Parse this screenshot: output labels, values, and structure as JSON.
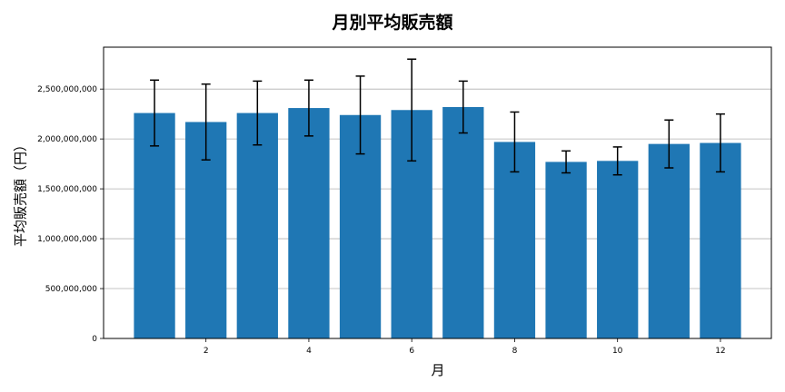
{
  "chart_data": {
    "type": "bar",
    "title": "月別平均販売額",
    "xlabel": "月",
    "ylabel": "平均販売額（円）",
    "categories": [
      1,
      2,
      3,
      4,
      5,
      6,
      7,
      8,
      9,
      10,
      11,
      12
    ],
    "values": [
      2260000000,
      2170000000,
      2260000000,
      2310000000,
      2240000000,
      2290000000,
      2320000000,
      1970000000,
      1770000000,
      1780000000,
      1950000000,
      1960000000
    ],
    "error": [
      330000000,
      380000000,
      320000000,
      280000000,
      390000000,
      510000000,
      260000000,
      300000000,
      110000000,
      140000000,
      240000000,
      290000000
    ],
    "bar_color": "#1f77b4",
    "error_color": "#000000",
    "xlim": [
      0.01,
      12.99
    ],
    "ylim": [
      0,
      2920000000
    ],
    "xticks": [
      2,
      4,
      6,
      8,
      10,
      12
    ],
    "xtick_labels": [
      "2",
      "4",
      "6",
      "8",
      "10",
      "12"
    ],
    "yticks": [
      0,
      500000000,
      1000000000,
      1500000000,
      2000000000,
      2500000000
    ],
    "ytick_labels": [
      "0",
      "500,000,000",
      "1,000,000,000",
      "1,500,000,000",
      "2,000,000,000",
      "2,500,000,000"
    ],
    "grid": {
      "axis": "y",
      "color": "#b0b0b0"
    },
    "legend": null
  }
}
